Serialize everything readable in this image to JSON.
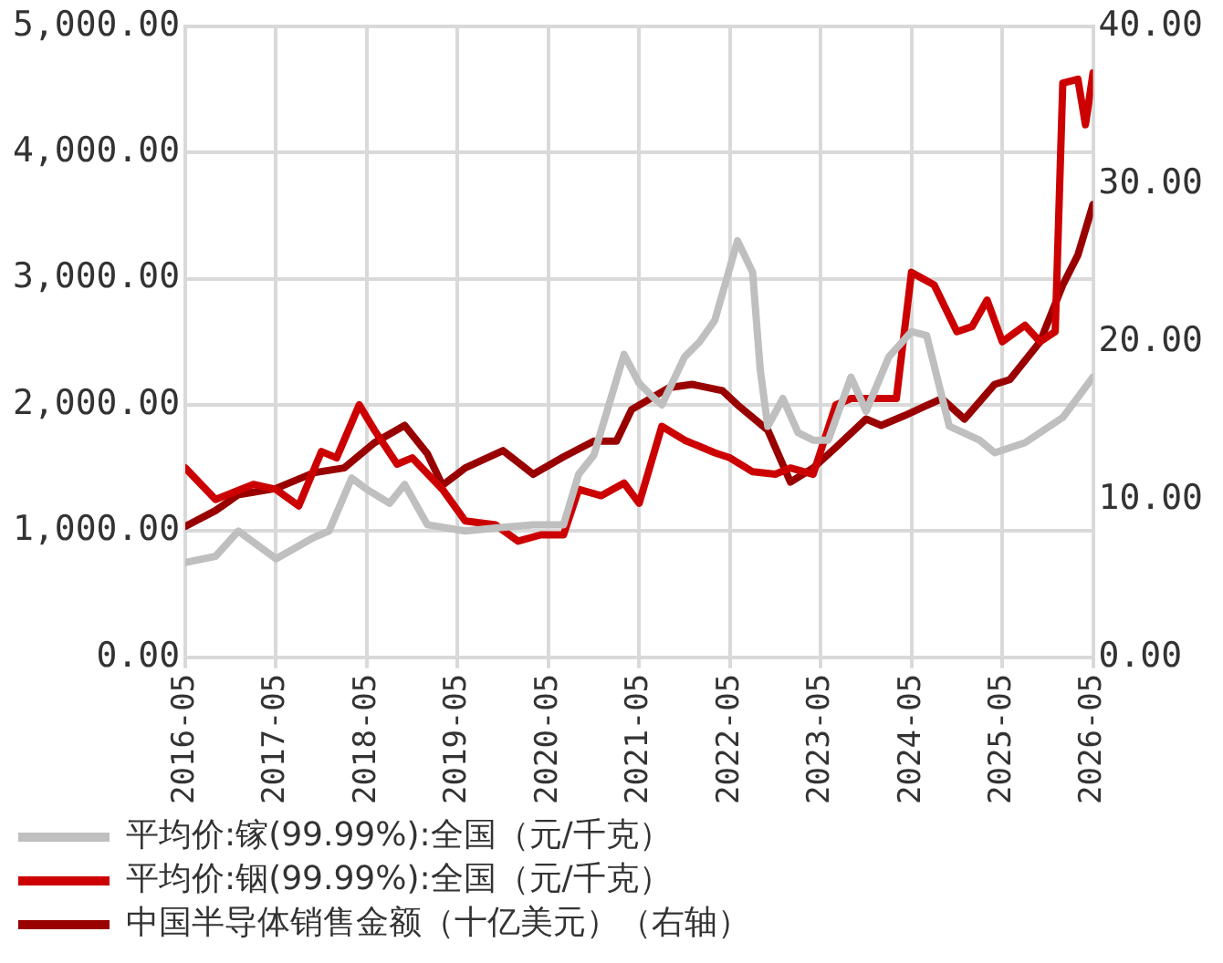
{
  "chart_data": {
    "type": "line",
    "xlim": [
      "2016-05",
      "2026-05"
    ],
    "xticks": [
      "2016-05",
      "2017-05",
      "2018-05",
      "2019-05",
      "2020-05",
      "2021-05",
      "2022-05",
      "2023-05",
      "2024-05",
      "2025-05",
      "2026-05"
    ],
    "ylim": [
      0,
      5000
    ],
    "yticks": [
      {
        "value": 0,
        "label": "0.00"
      },
      {
        "value": 1000,
        "label": "1,000.00"
      },
      {
        "value": 2000,
        "label": "2,000.00"
      },
      {
        "value": 3000,
        "label": "3,000.00"
      },
      {
        "value": 4000,
        "label": "4,000.00"
      },
      {
        "value": 5000,
        "label": "5,000.00"
      }
    ],
    "y2lim": [
      0,
      40
    ],
    "y2ticks": [
      {
        "value": 0,
        "label": "0.00"
      },
      {
        "value": 10,
        "label": "10.00"
      },
      {
        "value": 20,
        "label": "20.00"
      },
      {
        "value": 30,
        "label": "30.00"
      },
      {
        "value": 40,
        "label": "40.00"
      }
    ],
    "grid": true,
    "legend": "bottom",
    "marker": "none",
    "line_style": "solid",
    "series": [
      {
        "name": "平均价:镓(99.99%):全国（元/千克）",
        "color": "#bfbfbf",
        "x": [
          "2016-05",
          "2016-09",
          "2016-12",
          "2017-05",
          "2017-10",
          "2017-12",
          "2018-03",
          "2018-05",
          "2018-08",
          "2018-10",
          "2019-01",
          "2019-06",
          "2019-11",
          "2020-03",
          "2020-07",
          "2020-09",
          "2020-11",
          "2021-03",
          "2021-05",
          "2021-07",
          "2021-08",
          "2021-11",
          "2022-01",
          "2022-03",
          "2022-06",
          "2022-08",
          "2022-09",
          "2022-10",
          "2022-12",
          "2023-02",
          "2023-04",
          "2023-06",
          "2023-09",
          "2023-11",
          "2024-02",
          "2024-05",
          "2024-07",
          "2024-10",
          "2025-02",
          "2025-04",
          "2025-08",
          "2026-01",
          "2026-05"
        ],
        "values": [
          750,
          800,
          1000,
          780,
          950,
          1000,
          1420,
          1330,
          1220,
          1370,
          1050,
          1000,
          1030,
          1050,
          1050,
          1450,
          1600,
          2400,
          2170,
          2050,
          2000,
          2380,
          2500,
          2670,
          3300,
          3050,
          2280,
          1830,
          2050,
          1780,
          1720,
          1720,
          2220,
          1950,
          2380,
          2580,
          2550,
          1830,
          1720,
          1620,
          1700,
          1900,
          2220
        ]
      },
      {
        "name": "平均价:铟(99.99%):全国（元/千克）",
        "color": "#cc0000",
        "x": [
          "2016-05",
          "2016-09",
          "2017-02",
          "2017-05",
          "2017-08",
          "2017-11",
          "2018-01",
          "2018-04",
          "2018-06",
          "2018-09",
          "2018-11",
          "2019-03",
          "2019-06",
          "2019-10",
          "2020-01",
          "2020-04",
          "2020-07",
          "2020-09",
          "2020-12",
          "2021-03",
          "2021-05",
          "2021-08",
          "2021-11",
          "2022-03",
          "2022-05",
          "2022-08",
          "2022-11",
          "2023-01",
          "2023-04",
          "2023-07",
          "2023-09",
          "2024-03",
          "2024-05",
          "2024-08",
          "2024-11",
          "2025-01",
          "2025-03",
          "2025-05",
          "2025-08",
          "2025-10",
          "2025-12",
          "2026-01",
          "2026-03",
          "2026-04",
          "2026-05"
        ],
        "values": [
          1500,
          1250,
          1370,
          1330,
          1200,
          1630,
          1580,
          2000,
          1800,
          1530,
          1580,
          1330,
          1080,
          1050,
          920,
          970,
          970,
          1330,
          1280,
          1380,
          1220,
          1830,
          1720,
          1620,
          1580,
          1470,
          1450,
          1500,
          1450,
          2000,
          2050,
          2050,
          3050,
          2950,
          2580,
          2620,
          2830,
          2500,
          2630,
          2500,
          2580,
          4550,
          4580,
          4220,
          4630
        ]
      },
      {
        "name": "中国半导体销售金额（十亿美元）（右轴）",
        "color": "#990000",
        "axis": "y2",
        "x": [
          "2016-05",
          "2016-09",
          "2016-12",
          "2017-05",
          "2017-10",
          "2018-02",
          "2018-06",
          "2018-10",
          "2019-01",
          "2019-03",
          "2019-06",
          "2019-11",
          "2020-03",
          "2020-07",
          "2020-11",
          "2021-02",
          "2021-04",
          "2021-09",
          "2021-12",
          "2022-04",
          "2022-06",
          "2022-10",
          "2023-01",
          "2023-04",
          "2023-07",
          "2023-11",
          "2024-01",
          "2024-04",
          "2024-09",
          "2024-12",
          "2025-04",
          "2025-06",
          "2025-10",
          "2026-01",
          "2026-03",
          "2026-05"
        ],
        "values": [
          8.3,
          9.3,
          10.3,
          10.7,
          11.7,
          12.0,
          13.6,
          14.7,
          12.9,
          10.9,
          12.0,
          13.1,
          11.6,
          12.7,
          13.7,
          13.7,
          15.7,
          17.1,
          17.3,
          16.9,
          16.0,
          14.4,
          11.1,
          12.0,
          13.3,
          15.1,
          14.7,
          15.3,
          16.4,
          15.1,
          17.3,
          17.6,
          20.0,
          23.6,
          25.5,
          28.7
        ]
      }
    ]
  }
}
